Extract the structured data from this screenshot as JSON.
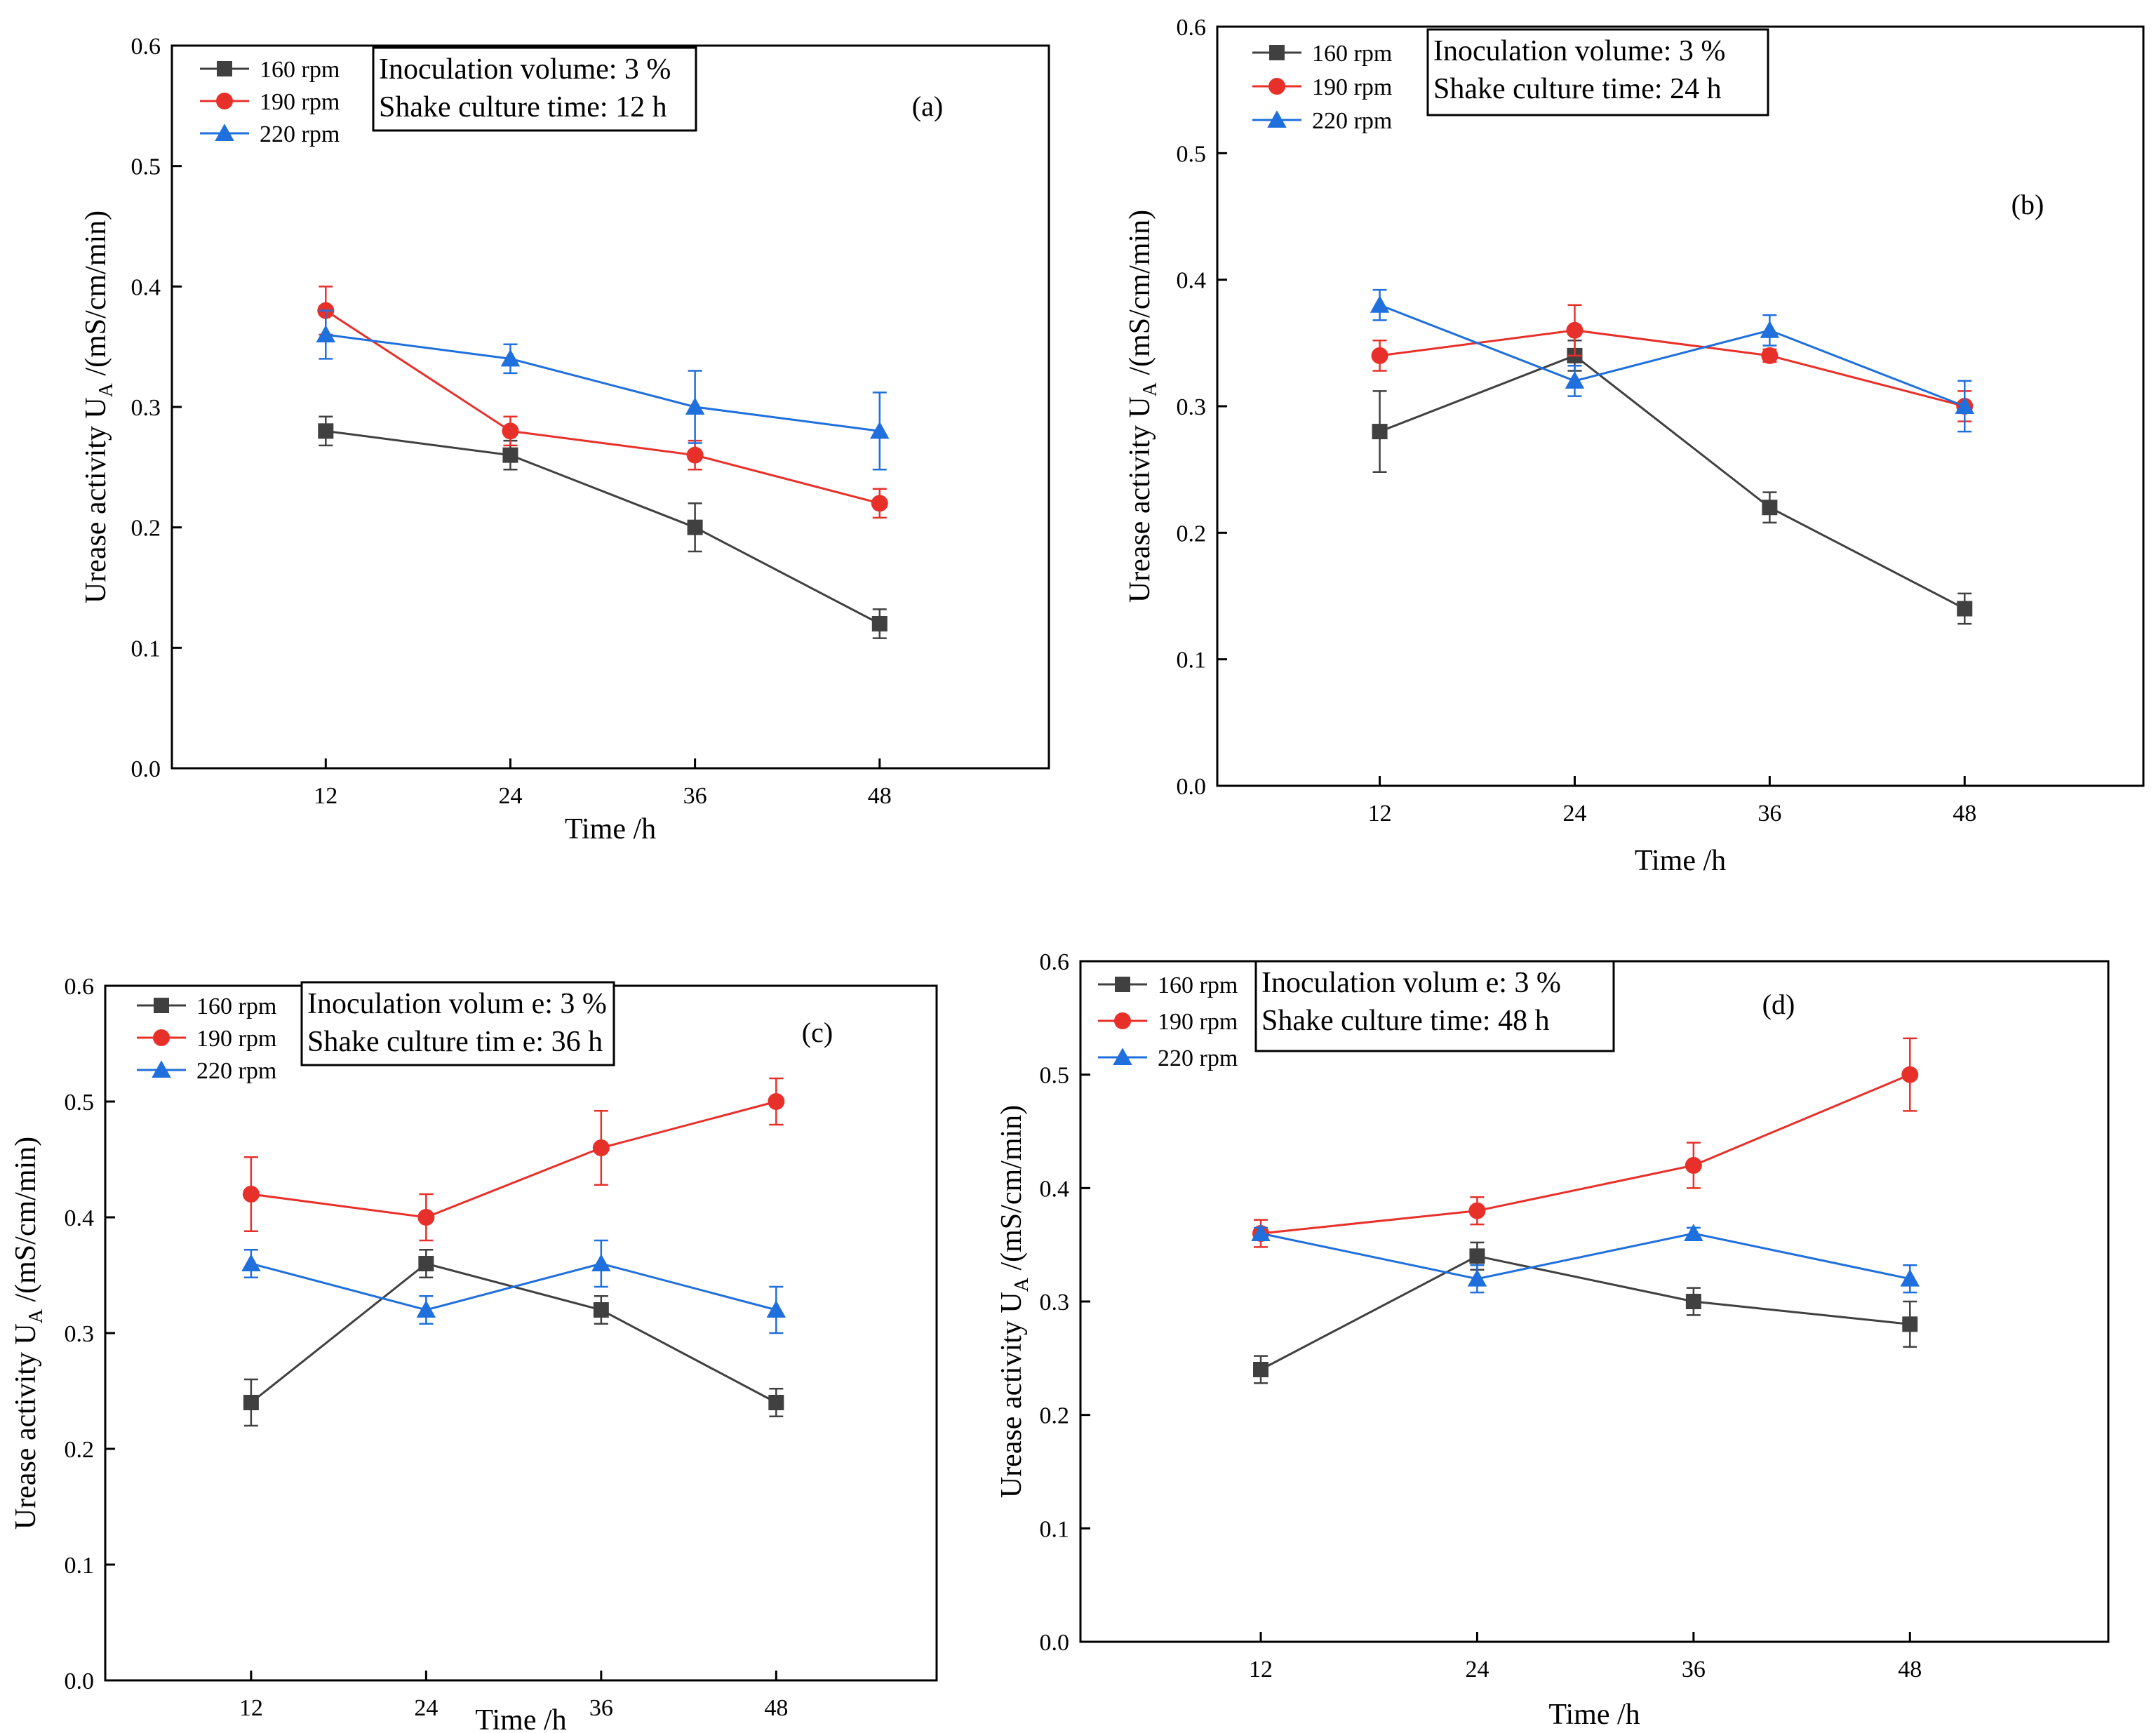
{
  "chart_data": [
    {
      "type": "line",
      "panel_label": "(a)",
      "x": [
        12,
        24,
        36,
        48
      ],
      "xlabel": "Time /h",
      "ylabel_main": "Urease activity U",
      "ylabel_sub": "A",
      "ylabel_unit": "/(mS/cm/min)",
      "ylim": [
        0,
        0.6
      ],
      "yticks": [
        "0.0",
        "0.1",
        "0.2",
        "0.3",
        "0.4",
        "0.5",
        "0.6"
      ],
      "xticks": [
        "12",
        "24",
        "36",
        "48"
      ],
      "info": [
        "Inoculation volume: 3 %",
        "Shake culture time: 12 h"
      ],
      "series": [
        {
          "name": "160 rpm",
          "color": "#404040",
          "marker": "square",
          "values": [
            0.28,
            0.26,
            0.2,
            0.12
          ],
          "errors": [
            0.012,
            0.012,
            0.02,
            0.012
          ]
        },
        {
          "name": "190 rpm",
          "color": "#e8302a",
          "marker": "circle",
          "values": [
            0.38,
            0.28,
            0.26,
            0.22
          ],
          "errors": [
            0.02,
            0.012,
            0.012,
            0.012
          ]
        },
        {
          "name": "220 rpm",
          "color": "#1f6fdc",
          "marker": "triangle",
          "values": [
            0.36,
            0.34,
            0.3,
            0.28
          ],
          "errors": [
            0.02,
            0.012,
            0.03,
            0.032
          ]
        }
      ]
    },
    {
      "type": "line",
      "panel_label": "(b)",
      "x": [
        12,
        24,
        36,
        48
      ],
      "xlabel": "Time /h",
      "ylabel_main": "Urease activity U",
      "ylabel_sub": "A",
      "ylabel_unit": "/(mS/cm/min)",
      "ylim": [
        0,
        0.6
      ],
      "yticks": [
        "0.0",
        "0.1",
        "0.2",
        "0.3",
        "0.4",
        "0.5",
        "0.6"
      ],
      "xticks": [
        "12",
        "24",
        "36",
        "48"
      ],
      "info": [
        "Inoculation volume: 3 %",
        "Shake culture time: 24 h"
      ],
      "series": [
        {
          "name": "160 rpm",
          "color": "#404040",
          "marker": "square",
          "values": [
            0.28,
            0.34,
            0.22,
            0.14
          ],
          "errors": [
            0.032,
            0.012,
            0.012,
            0.012
          ]
        },
        {
          "name": "190 rpm",
          "color": "#e8302a",
          "marker": "circle",
          "values": [
            0.34,
            0.36,
            0.34,
            0.3
          ],
          "errors": [
            0.012,
            0.02,
            0.005,
            0.012
          ]
        },
        {
          "name": "220 rpm",
          "color": "#1f6fdc",
          "marker": "triangle",
          "values": [
            0.38,
            0.32,
            0.36,
            0.3
          ],
          "errors": [
            0.012,
            0.012,
            0.012,
            0.02
          ]
        }
      ]
    },
    {
      "type": "line",
      "panel_label": "(c)",
      "x": [
        12,
        24,
        36,
        48
      ],
      "xlabel": "Time /h",
      "ylabel_main": "Urease activity U",
      "ylabel_sub": "A",
      "ylabel_unit": "/(mS/cm/min)",
      "ylim": [
        0,
        0.6
      ],
      "yticks": [
        "0.0",
        "0.1",
        "0.2",
        "0.3",
        "0.4",
        "0.5",
        "0.6"
      ],
      "xticks": [
        "12",
        "24",
        "36",
        "48"
      ],
      "info": [
        "Inoculation volum e: 3 %",
        "Shake culture tim e: 36 h"
      ],
      "series": [
        {
          "name": "160 rpm",
          "color": "#404040",
          "marker": "square",
          "values": [
            0.24,
            0.36,
            0.32,
            0.24
          ],
          "errors": [
            0.02,
            0.012,
            0.012,
            0.012
          ]
        },
        {
          "name": "190 rpm",
          "color": "#e8302a",
          "marker": "circle",
          "values": [
            0.42,
            0.4,
            0.46,
            0.5
          ],
          "errors": [
            0.032,
            0.02,
            0.032,
            0.02
          ]
        },
        {
          "name": "220 rpm",
          "color": "#1f6fdc",
          "marker": "triangle",
          "values": [
            0.36,
            0.32,
            0.36,
            0.32
          ],
          "errors": [
            0.012,
            0.012,
            0.02,
            0.02
          ]
        }
      ]
    },
    {
      "type": "line",
      "panel_label": "(d)",
      "x": [
        12,
        24,
        36,
        48
      ],
      "xlabel": "Time /h",
      "ylabel_main": "Urease activity U",
      "ylabel_sub": "A",
      "ylabel_unit": "/(mS/cm/min)",
      "ylim": [
        0,
        0.6
      ],
      "yticks": [
        "0.0",
        "0.1",
        "0.2",
        "0.3",
        "0.4",
        "0.5",
        "0.6"
      ],
      "xticks": [
        "12",
        "24",
        "36",
        "48"
      ],
      "info": [
        "Inoculation volum e: 3 %",
        "Shake culture time: 48 h"
      ],
      "series": [
        {
          "name": "160 rpm",
          "color": "#404040",
          "marker": "square",
          "values": [
            0.24,
            0.34,
            0.3,
            0.28
          ],
          "errors": [
            0.012,
            0.012,
            0.012,
            0.02
          ]
        },
        {
          "name": "190 rpm",
          "color": "#e8302a",
          "marker": "circle",
          "values": [
            0.36,
            0.38,
            0.42,
            0.5
          ],
          "errors": [
            0.012,
            0.012,
            0.02,
            0.032
          ]
        },
        {
          "name": "220 rpm",
          "color": "#1f6fdc",
          "marker": "triangle",
          "values": [
            0.36,
            0.32,
            0.36,
            0.32
          ],
          "errors": [
            0.005,
            0.012,
            0.005,
            0.012
          ]
        }
      ]
    }
  ]
}
